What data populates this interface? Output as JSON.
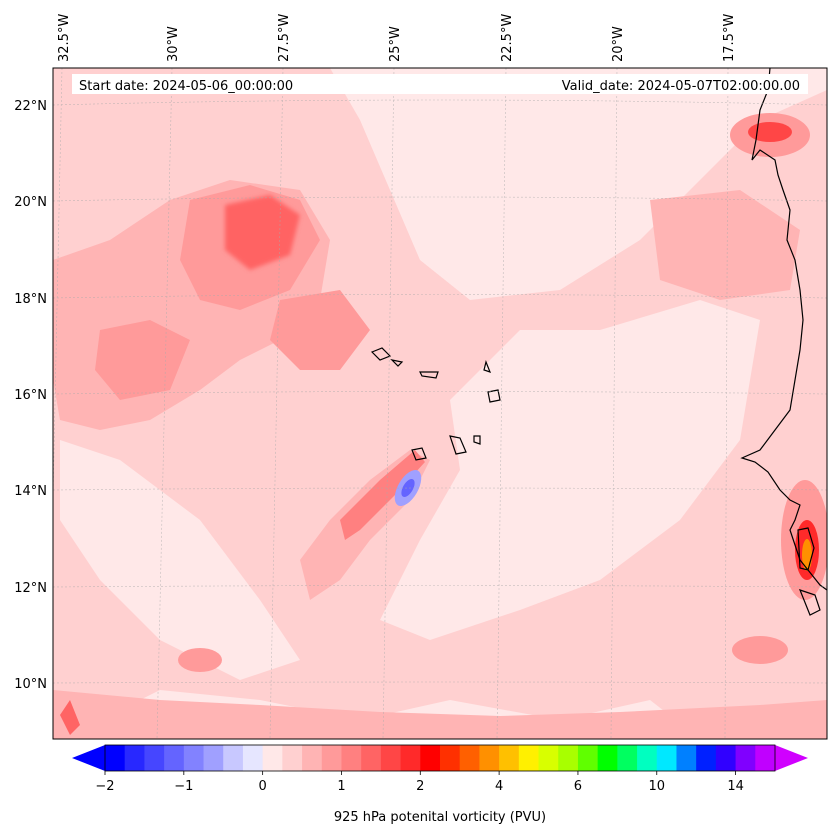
{
  "header": {
    "start_date": "Start date: 2024-05-06_00:00:00",
    "valid_date": "Valid_date: 2024-05-07T02:00:00.00"
  },
  "map": {
    "lon_labels": [
      "32.5°W",
      "30°W",
      "27.5°W",
      "25°W",
      "22.5°W",
      "20°W",
      "17.5°W"
    ],
    "lat_labels": [
      "22°N",
      "20°N",
      "18°N",
      "16°N",
      "14°N",
      "12°N",
      "10°N"
    ],
    "field_base_color": "#ffe8e8",
    "coast_color": "#000000"
  },
  "colorbar": {
    "label": "925 hPa potenital vorticity (PVU)",
    "ticks": [
      "−2",
      "−1",
      "0",
      "1",
      "2",
      "4",
      "6",
      "10",
      "14"
    ],
    "colors": [
      "#0000ff",
      "#2828ff",
      "#4646ff",
      "#6464ff",
      "#8282ff",
      "#a0a0ff",
      "#c8c8ff",
      "#e6e6ff",
      "#ffe8e8",
      "#ffd0d0",
      "#ffb4b4",
      "#ff9a9a",
      "#ff8080",
      "#ff6464",
      "#ff4646",
      "#ff2a2a",
      "#ff0000",
      "#ff3000",
      "#ff6000",
      "#ff9000",
      "#ffc000",
      "#fff000",
      "#d8ff00",
      "#a8ff00",
      "#60ff00",
      "#00ff00",
      "#00ff60",
      "#00ffc0",
      "#00e8ff",
      "#0080ff",
      "#0020ff",
      "#3000ff",
      "#8000ff",
      "#c000ff"
    ],
    "extend_left_color": "#0000ff",
    "extend_right_color": "#d000ff"
  }
}
